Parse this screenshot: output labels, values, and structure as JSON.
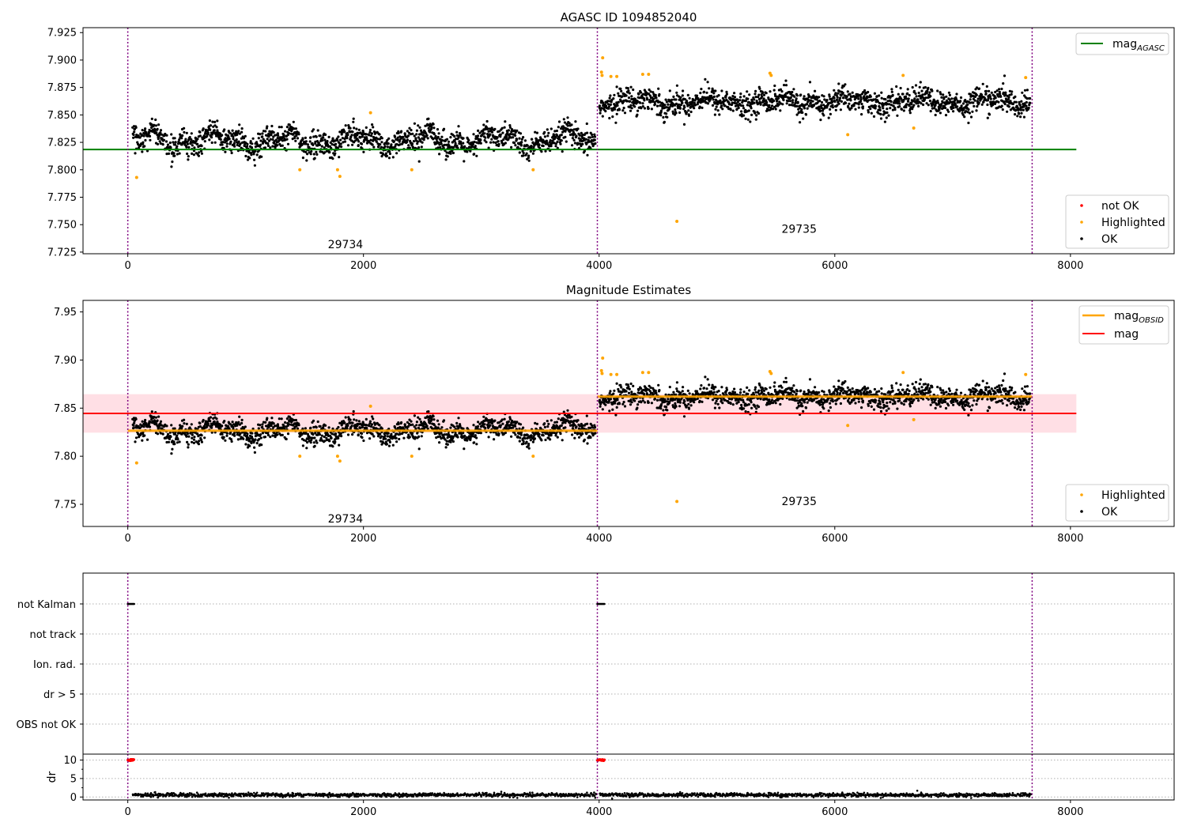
{
  "colors": {
    "ok": "#000000",
    "highlighted": "#ffa500",
    "not_ok": "#ff0000",
    "mag_agasc": "#008000",
    "mag_obsid": "#ffa500",
    "mag": "#ff0000",
    "mag_band": "#ffc0cb",
    "obs_boundary": "#800080",
    "grid": "#b0b0b0"
  },
  "chart_data": [
    {
      "type": "scatter",
      "title": "AGASC ID 1094852040",
      "xlabel": "",
      "ylabel": "",
      "xlim": [
        -380,
        8880
      ],
      "ylim": [
        7.7235,
        7.9295
      ],
      "x_ticks": [
        0,
        2000,
        4000,
        6000,
        8000
      ],
      "y_ticks": [
        7.725,
        7.75,
        7.775,
        7.8,
        7.825,
        7.85,
        7.875,
        7.9,
        7.925
      ],
      "y_tick_labels": [
        "7.725",
        "7.750",
        "7.775",
        "7.800",
        "7.825",
        "7.850",
        "7.875",
        "7.900",
        "7.925"
      ],
      "obs_boundaries": [
        0,
        3985,
        7675
      ],
      "obs_labels": [
        {
          "text": "29734",
          "x": 2000,
          "y": 7.7315
        },
        {
          "text": "29735",
          "x": 5850,
          "y": 7.7455
        }
      ],
      "reference_lines": [
        {
          "name": "mag",
          "subscript": "AGASC",
          "value": 7.8185,
          "x_range": [
            -380,
            8050
          ],
          "color": "#008000"
        }
      ],
      "series": [
        {
          "name": "OK",
          "color": "#000000",
          "segments": [
            {
              "x_range": [
                40,
                3970
              ],
              "mean": 7.8265,
              "amplitude": 0.0095,
              "noise": 0.0055
            },
            {
              "x_range": [
                4000,
                7660
              ],
              "mean": 7.862,
              "amplitude": 0.0055,
              "noise": 0.0055
            }
          ]
        },
        {
          "name": "Highlighted",
          "color": "#ffa500",
          "points": [
            [
              75,
              7.793
            ],
            [
              1460,
              7.8
            ],
            [
              1780,
              7.8
            ],
            [
              1800,
              7.794
            ],
            [
              2060,
              7.852
            ],
            [
              2410,
              7.8
            ],
            [
              3440,
              7.8
            ],
            [
              4030,
              7.902
            ],
            [
              4020,
              7.889
            ],
            [
              4025,
              7.886
            ],
            [
              4100,
              7.885
            ],
            [
              4150,
              7.885
            ],
            [
              4370,
              7.887
            ],
            [
              4420,
              7.887
            ],
            [
              4660,
              7.753
            ],
            [
              5450,
              7.888
            ],
            [
              5460,
              7.886
            ],
            [
              6110,
              7.832
            ],
            [
              6580,
              7.886
            ],
            [
              6670,
              7.838
            ],
            [
              7620,
              7.884
            ]
          ]
        },
        {
          "name": "not OK",
          "color": "#ff0000",
          "points": []
        }
      ],
      "legends": [
        {
          "placement": "top-right",
          "entries": [
            {
              "label": "mag",
              "subscript": "AGASC",
              "kind": "line",
              "color": "#008000"
            }
          ]
        },
        {
          "placement": "bottom-right",
          "entries": [
            {
              "label": "not OK",
              "kind": "marker",
              "color": "#ff0000"
            },
            {
              "label": "Highlighted",
              "kind": "marker",
              "color": "#ffa500"
            },
            {
              "label": "OK",
              "kind": "marker",
              "color": "#000000"
            }
          ]
        }
      ]
    },
    {
      "type": "scatter",
      "title": "Magnitude Estimates",
      "xlabel": "",
      "ylabel": "",
      "xlim": [
        -380,
        8880
      ],
      "ylim": [
        7.727,
        7.962
      ],
      "x_ticks": [
        0,
        2000,
        4000,
        6000,
        8000
      ],
      "y_ticks": [
        7.75,
        7.8,
        7.85,
        7.9,
        7.95
      ],
      "y_tick_labels": [
        "7.75",
        "7.80",
        "7.85",
        "7.90",
        "7.95"
      ],
      "obs_boundaries": [
        0,
        3985,
        7675
      ],
      "obs_labels": [
        {
          "text": "29734",
          "x": 2000,
          "y": 7.7345
        },
        {
          "text": "29735",
          "x": 5850,
          "y": 7.7525
        }
      ],
      "reference_lines": [
        {
          "name": "mag",
          "subscript": "OBSID",
          "value": 7.8265,
          "x_range": [
            0,
            3985
          ],
          "color": "#ffa500"
        },
        {
          "name": "mag",
          "subscript": "OBSID",
          "value": 7.862,
          "x_range": [
            3985,
            7675
          ],
          "color": "#ffa500"
        },
        {
          "name": "mag",
          "subscript": "",
          "value": 7.8445,
          "x_range": [
            -380,
            8050
          ],
          "color": "#ff0000"
        }
      ],
      "mag_band": {
        "y_range": [
          7.8245,
          7.8645
        ],
        "x_range": [
          -380,
          8050
        ]
      },
      "series": [
        {
          "name": "OK",
          "color": "#000000",
          "segments": [
            {
              "x_range": [
                40,
                3970
              ],
              "mean": 7.8265,
              "amplitude": 0.0095,
              "noise": 0.0055
            },
            {
              "x_range": [
                4000,
                7660
              ],
              "mean": 7.862,
              "amplitude": 0.0055,
              "noise": 0.0055
            }
          ]
        },
        {
          "name": "Highlighted",
          "color": "#ffa500",
          "points": [
            [
              75,
              7.793
            ],
            [
              1460,
              7.8
            ],
            [
              1780,
              7.8
            ],
            [
              1800,
              7.795
            ],
            [
              2060,
              7.852
            ],
            [
              2410,
              7.8
            ],
            [
              3440,
              7.8
            ],
            [
              4030,
              7.902
            ],
            [
              4020,
              7.889
            ],
            [
              4025,
              7.886
            ],
            [
              4100,
              7.885
            ],
            [
              4150,
              7.885
            ],
            [
              4370,
              7.887
            ],
            [
              4420,
              7.887
            ],
            [
              4660,
              7.753
            ],
            [
              5450,
              7.888
            ],
            [
              5460,
              7.886
            ],
            [
              6110,
              7.832
            ],
            [
              6580,
              7.887
            ],
            [
              6670,
              7.838
            ],
            [
              7620,
              7.885
            ]
          ]
        }
      ],
      "legends": [
        {
          "placement": "top-right",
          "entries": [
            {
              "label": "mag",
              "subscript": "OBSID",
              "kind": "line",
              "color": "#ffa500"
            },
            {
              "label": "mag",
              "subscript": "",
              "kind": "line",
              "color": "#ff0000"
            }
          ]
        },
        {
          "placement": "bottom-right",
          "entries": [
            {
              "label": "Highlighted",
              "kind": "marker",
              "color": "#ffa500"
            },
            {
              "label": "OK",
              "kind": "marker",
              "color": "#000000"
            }
          ]
        }
      ]
    },
    {
      "type": "scatter",
      "title": "",
      "xlabel": "",
      "ylabel": "",
      "xlim": [
        -380,
        8880
      ],
      "categories": [
        "not Kalman",
        "not track",
        "Ion. rad.",
        "dr > 5",
        "OBS not OK"
      ],
      "obs_boundaries": [
        0,
        3985,
        7675
      ],
      "flag_runs": [
        {
          "category": "not Kalman",
          "x_range": [
            0,
            55
          ]
        },
        {
          "category": "not Kalman",
          "x_range": [
            3985,
            4045
          ]
        }
      ]
    },
    {
      "type": "scatter",
      "title": "",
      "xlabel": "",
      "ylabel": "dr",
      "xlim": [
        -380,
        8880
      ],
      "ylim": [
        -0.8,
        11.6
      ],
      "y_ticks": [
        0,
        5,
        10
      ],
      "y_tick_labels": [
        "0",
        "5",
        "10"
      ],
      "x_ticks": [
        0,
        2000,
        4000,
        6000,
        8000
      ],
      "obs_boundaries": [
        0,
        3985,
        7675
      ],
      "series": [
        {
          "name": "OK",
          "color": "#000000",
          "baseline": 0.55,
          "noise": 0.25,
          "x_ranges": [
            [
              40,
              3970
            ],
            [
              4000,
              7660
            ]
          ]
        },
        {
          "name": "not OK",
          "color": "#ff0000",
          "value": 10,
          "x_ranges": [
            [
              0,
              55
            ],
            [
              3985,
              4045
            ]
          ]
        }
      ]
    }
  ]
}
